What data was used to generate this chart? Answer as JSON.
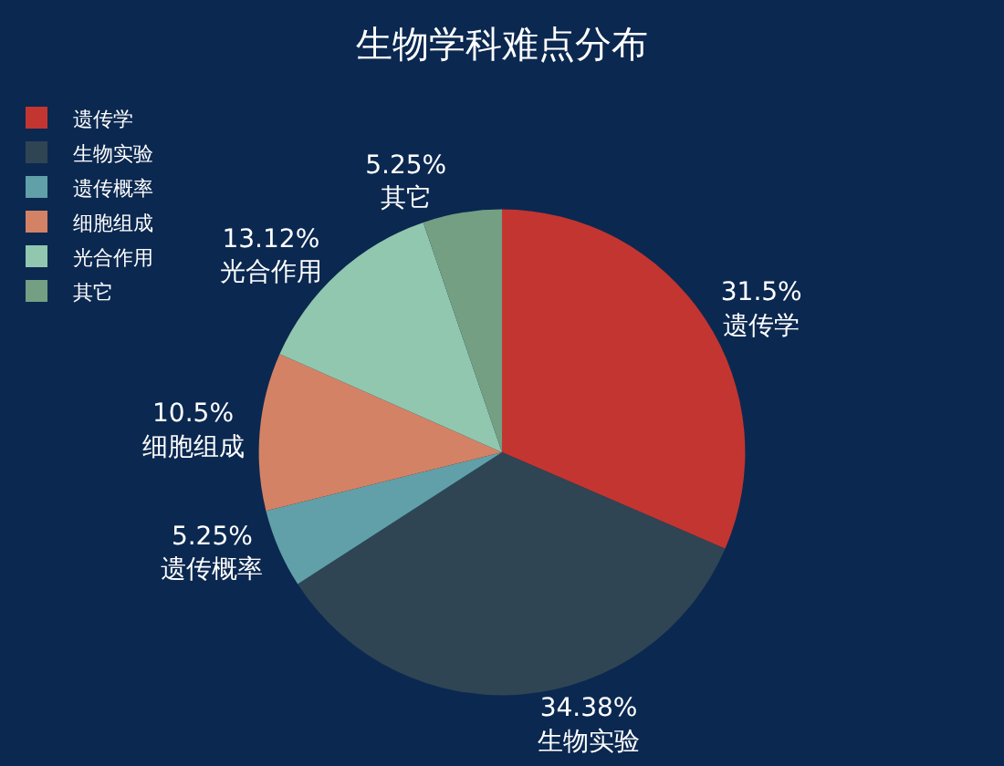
{
  "chart_data": {
    "type": "pie",
    "title": "生物学科难点分布",
    "categories": [
      "遗传学",
      "生物实验",
      "遗传概率",
      "细胞组成",
      "光合作用",
      "其它"
    ],
    "values": [
      31.5,
      34.38,
      5.25,
      10.5,
      13.12,
      5.25
    ],
    "value_labels": [
      "31.5%",
      "34.38%",
      "5.25%",
      "10.5%",
      "13.12%",
      "5.25%"
    ],
    "colors": [
      "#c23531",
      "#2f4554",
      "#61a0a8",
      "#d48265",
      "#91c7ae",
      "#749f83"
    ],
    "legend": "top left"
  }
}
